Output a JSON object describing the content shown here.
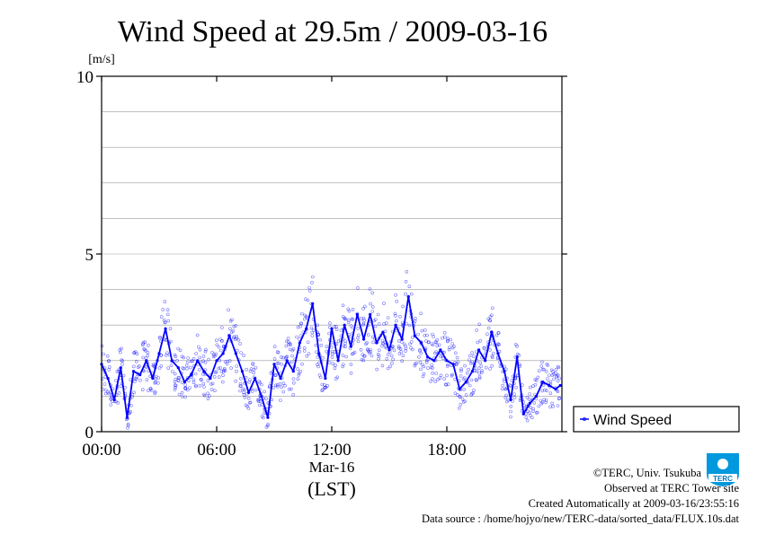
{
  "chart_data": {
    "type": "line",
    "title": "Wind Speed at 29.5m / 2009-03-16",
    "ylabel": "[m/s]",
    "xlabel": "(LST)",
    "date_label": "Mar-16",
    "ylim": [
      0,
      10
    ],
    "yticks": [
      "0",
      "5",
      "10"
    ],
    "xlim": [
      "00:00",
      "24:00"
    ],
    "xticks": [
      "00:00",
      "06:00",
      "12:00",
      "18:00"
    ],
    "grid": true,
    "legend_position": "right",
    "series": [
      {
        "name": "Wind Speed",
        "color": "#0000ff",
        "x": [
          "00:00",
          "00:20",
          "00:40",
          "01:00",
          "01:20",
          "01:40",
          "02:00",
          "02:20",
          "02:40",
          "03:00",
          "03:20",
          "03:40",
          "04:00",
          "04:20",
          "04:40",
          "05:00",
          "05:20",
          "05:40",
          "06:00",
          "06:20",
          "06:40",
          "07:00",
          "07:20",
          "07:40",
          "08:00",
          "08:20",
          "08:40",
          "09:00",
          "09:20",
          "09:40",
          "10:00",
          "10:20",
          "10:40",
          "11:00",
          "11:20",
          "11:40",
          "12:00",
          "12:20",
          "12:40",
          "13:00",
          "13:20",
          "13:40",
          "14:00",
          "14:20",
          "14:40",
          "15:00",
          "15:20",
          "15:40",
          "16:00",
          "16:20",
          "16:40",
          "17:00",
          "17:20",
          "17:40",
          "18:00",
          "18:20",
          "18:40",
          "19:00",
          "19:20",
          "19:40",
          "20:00",
          "20:20",
          "20:40",
          "21:00",
          "21:20",
          "21:40",
          "22:00",
          "22:20",
          "22:40",
          "23:00",
          "23:20",
          "23:40",
          "23:55"
        ],
        "values": [
          1.9,
          1.5,
          0.9,
          1.8,
          0.4,
          1.7,
          1.6,
          2.0,
          1.5,
          2.2,
          2.9,
          2.0,
          1.8,
          1.4,
          1.6,
          2.0,
          1.7,
          1.5,
          2.0,
          2.2,
          2.7,
          2.2,
          1.7,
          1.1,
          1.5,
          1.0,
          0.4,
          1.9,
          1.5,
          2.0,
          1.7,
          2.5,
          2.9,
          3.6,
          2.2,
          1.5,
          2.9,
          2.0,
          3.0,
          2.4,
          3.3,
          2.6,
          3.3,
          2.5,
          2.8,
          2.3,
          3.0,
          2.6,
          3.8,
          2.7,
          2.5,
          2.1,
          2.0,
          2.3,
          2.0,
          1.9,
          1.2,
          1.4,
          1.7,
          2.3,
          2.0,
          2.8,
          2.2,
          1.7,
          0.9,
          2.1,
          0.5,
          0.8,
          1.0,
          1.4,
          1.3,
          1.2,
          1.3
        ]
      }
    ]
  },
  "footer": {
    "copyright": "©TERC, Univ. Tsukuba",
    "observed": "Observed at TERC Tower site",
    "created": "Created Automatically at 2009-03-16/23:55:16",
    "source": "Data source : /home/hojyo/new/TERC-data/sorted_data/FLUX.10s.dat",
    "logo_text": "TERC"
  }
}
